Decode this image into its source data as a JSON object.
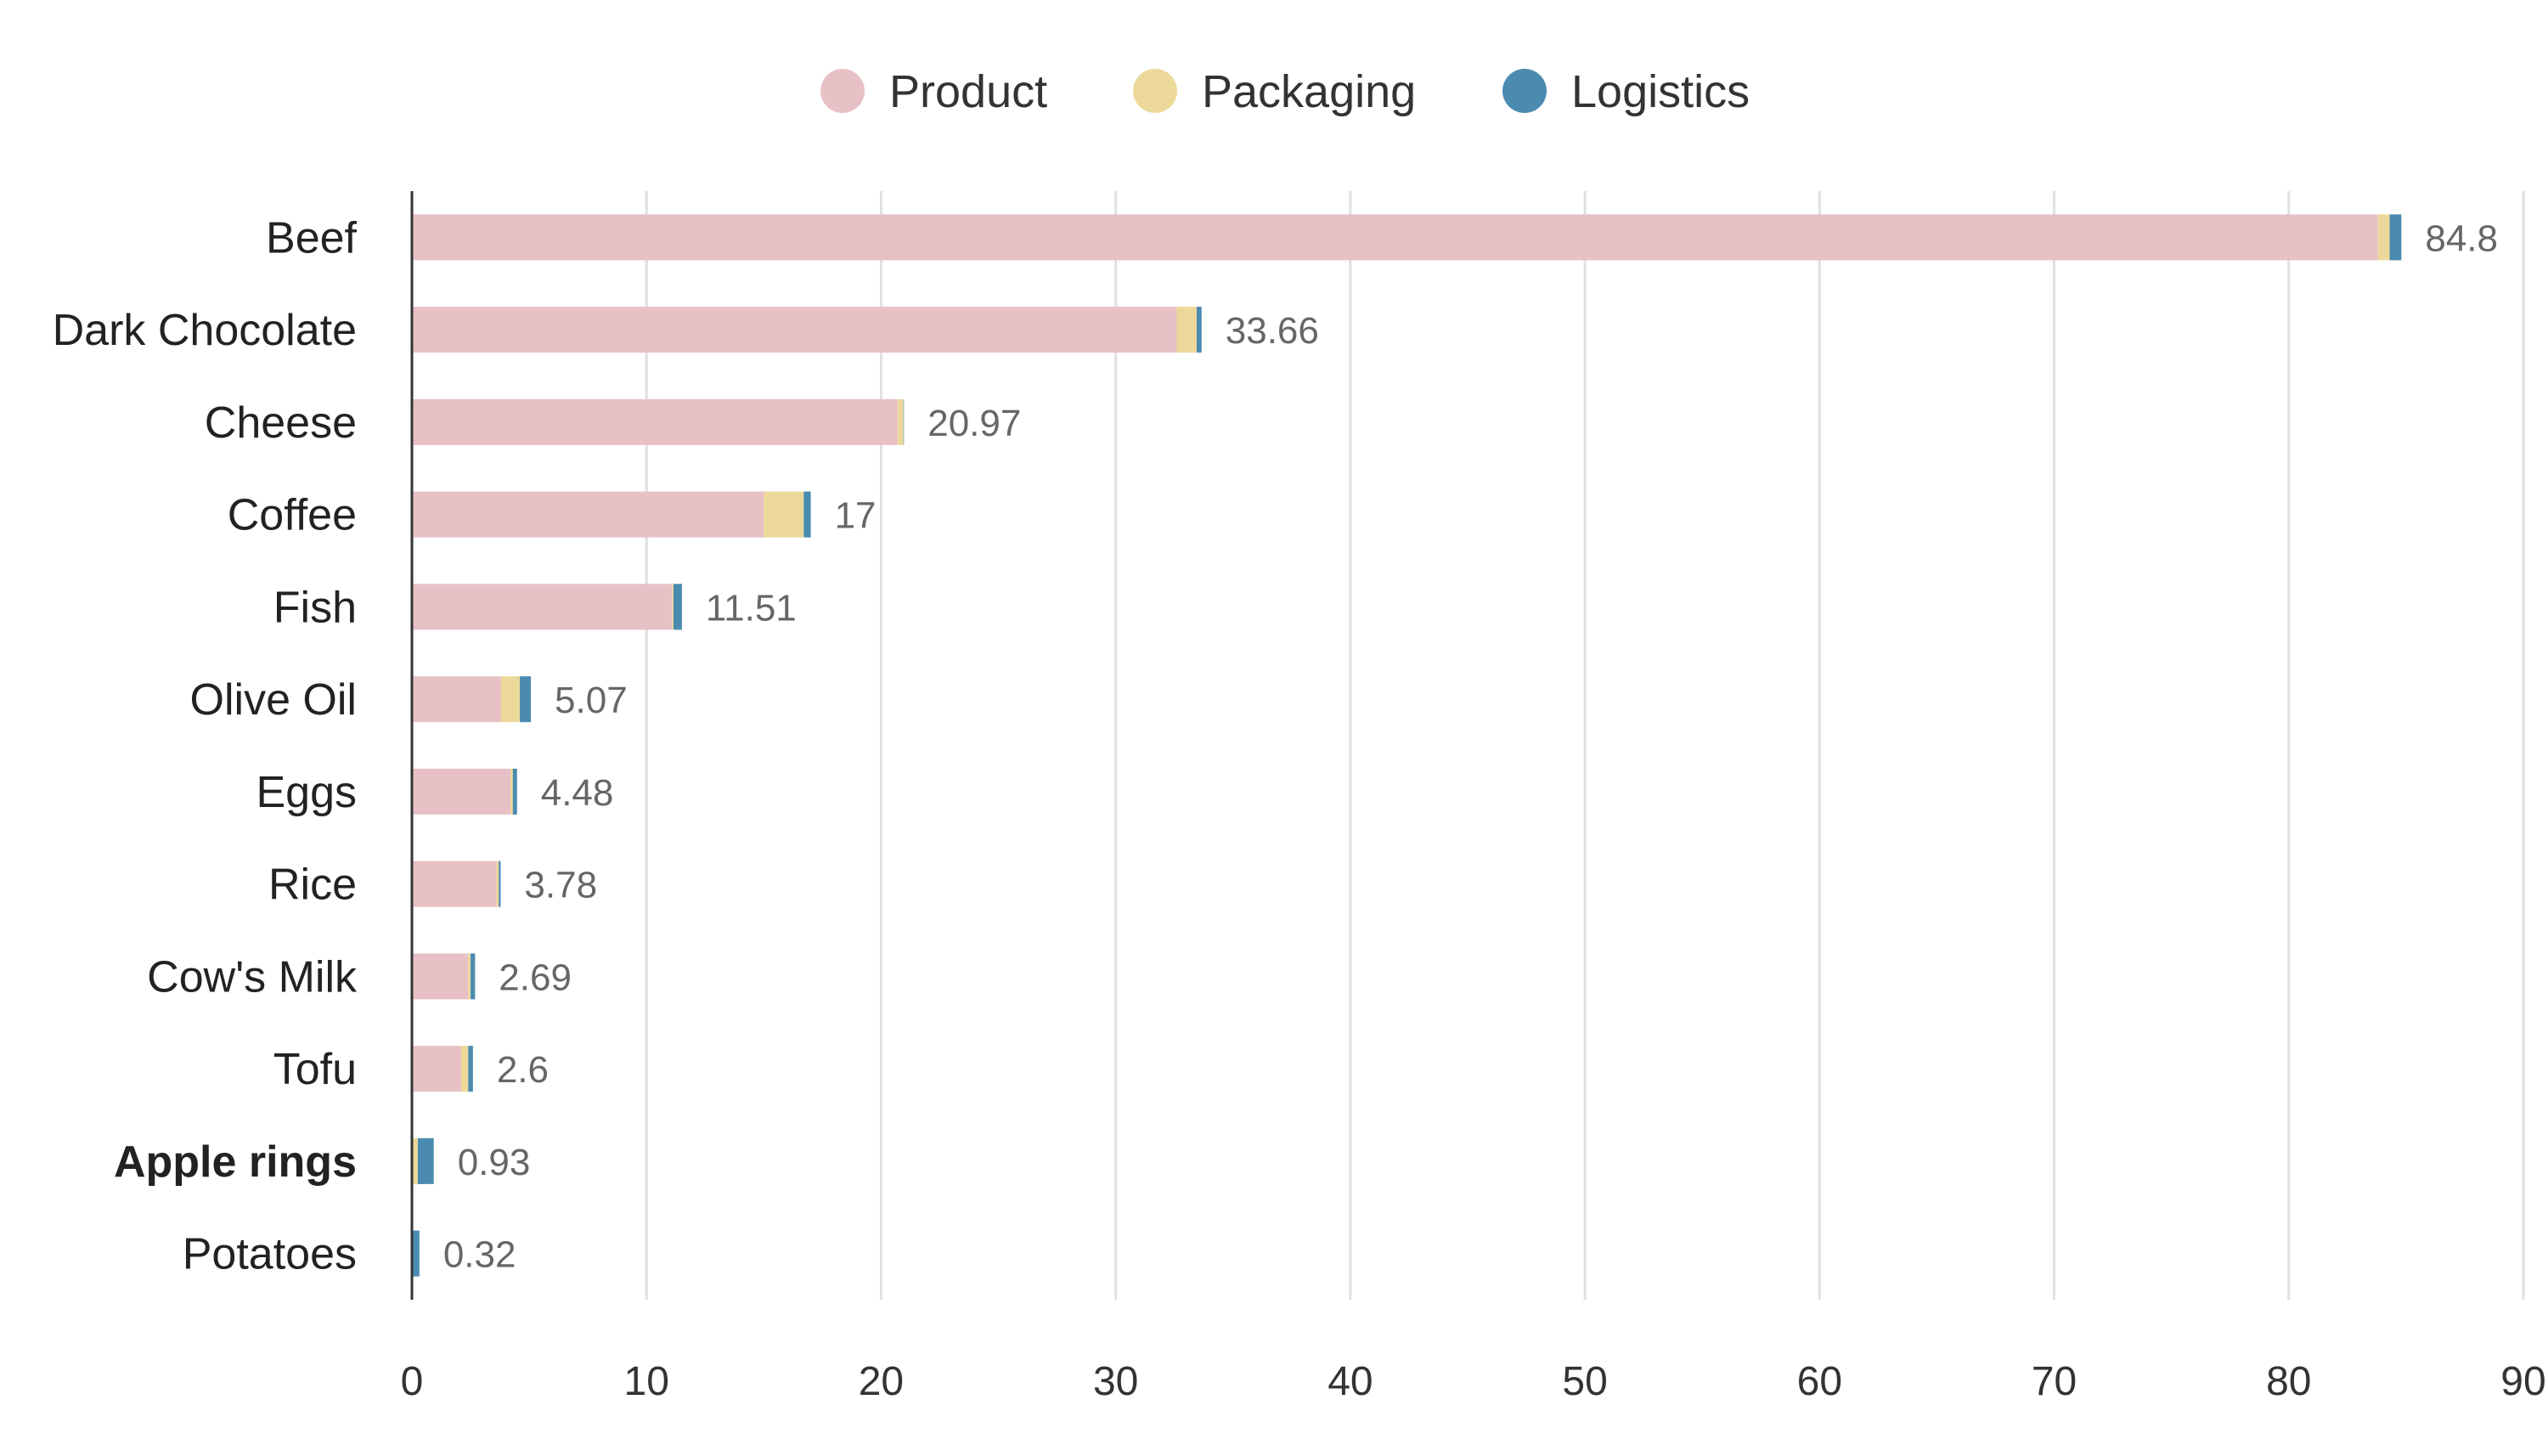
{
  "chart_data": {
    "type": "bar",
    "orientation": "horizontal",
    "stacked": true,
    "categories": [
      "Beef",
      "Dark Chocolate",
      "Cheese",
      "Coffee",
      "Fish",
      "Olive Oil",
      "Eggs",
      "Rice",
      "Cow's Milk",
      "Tofu",
      "Apple rings",
      "Potatoes"
    ],
    "highlighted_category": "Apple rings",
    "series": [
      {
        "name": "Product",
        "color": "#e8c1c6",
        "values": [
          83.8,
          32.6,
          20.7,
          15.0,
          11.1,
          3.8,
          4.2,
          3.6,
          2.4,
          2.1,
          0.05,
          0.02
        ]
      },
      {
        "name": "Packaging",
        "color": "#ecd99a",
        "values": [
          0.5,
          0.85,
          0.25,
          1.7,
          0.05,
          0.8,
          0.1,
          0.1,
          0.1,
          0.3,
          0.2,
          0.02
        ]
      },
      {
        "name": "Logistics",
        "color": "#4b8bb0",
        "values": [
          0.5,
          0.21,
          0.02,
          0.3,
          0.36,
          0.47,
          0.18,
          0.08,
          0.19,
          0.2,
          0.68,
          0.28
        ]
      }
    ],
    "totals": [
      "84.8",
      "33.66",
      "20.97",
      "17",
      "11.51",
      "5.07",
      "4.48",
      "3.78",
      "2.69",
      "2.6",
      "0.93",
      "0.32"
    ],
    "xlim": [
      0,
      90
    ],
    "xticks": [
      "0",
      "10",
      "20",
      "30",
      "40",
      "50",
      "60",
      "70",
      "80",
      "90"
    ],
    "grid": true,
    "legend": "top-center",
    "title": "",
    "xlabel": "",
    "ylabel": ""
  }
}
